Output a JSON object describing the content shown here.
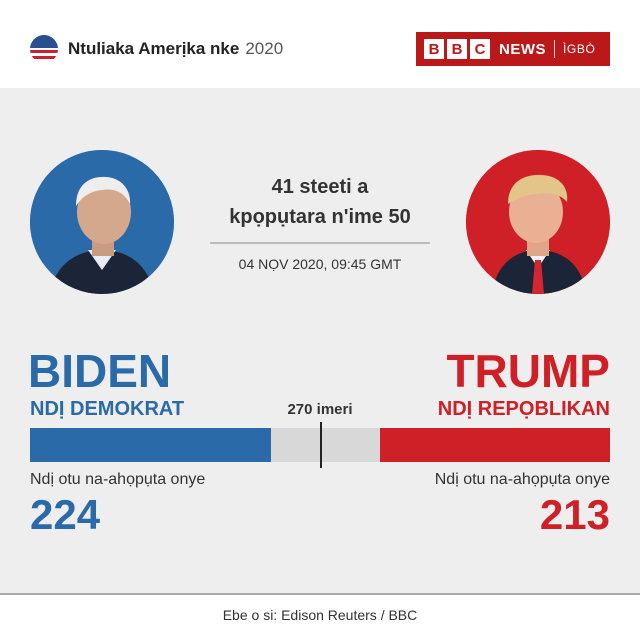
{
  "header": {
    "title": "Ntuliaka Amerịka nke",
    "year": "2020",
    "icon": "us-flag-circle-icon",
    "logo": {
      "letters": [
        "B",
        "B",
        "C"
      ],
      "news": "NEWS",
      "language": "ÌGBÒ"
    }
  },
  "summary": {
    "states_line1": "41 steeti a",
    "states_line2": "kpọpụtara n'ime 50",
    "timestamp": "04 NỌV 2020, 09:45 GMT"
  },
  "threshold": {
    "label": "270 imeri",
    "value": 270,
    "total": 538
  },
  "candidates": {
    "biden": {
      "name": "BIDEN",
      "party": "NDỊ DEMOKRAT",
      "votes_label": "Ndị otu na-ahọpụta onye",
      "votes": 224,
      "votes_text": "224",
      "color": "#2b6aa8"
    },
    "trump": {
      "name": "TRUMP",
      "party": "NDỊ REPỌBLIKAN",
      "votes_label": "Ndị otu na-ahọpụta onye",
      "votes": 213,
      "votes_text": "213",
      "color": "#cf2027"
    }
  },
  "footer": {
    "source": "Ebe o si: Edison Reuters / BBC"
  }
}
